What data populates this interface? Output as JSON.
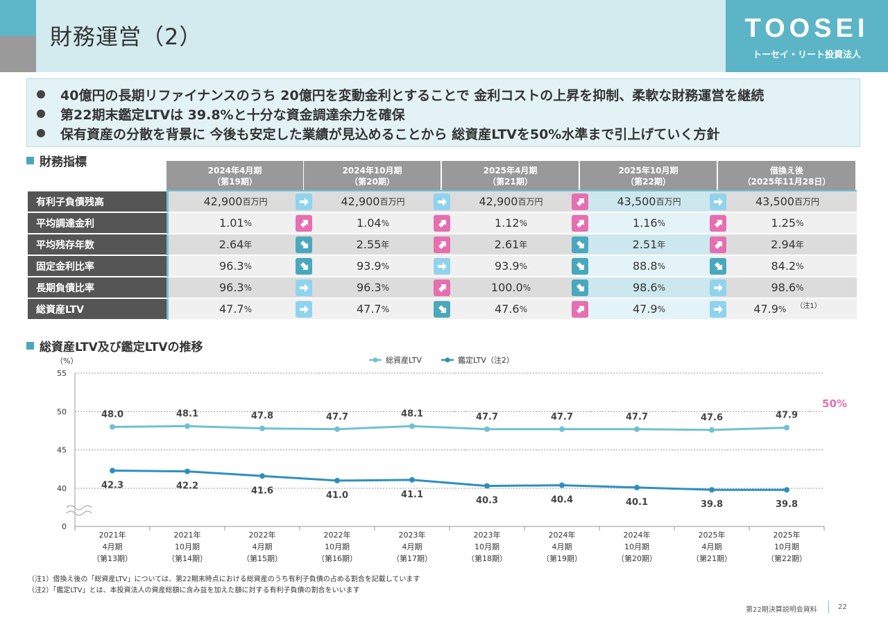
{
  "header": {
    "title": "財務運営（2）",
    "logo_main": "TOOSEI",
    "logo_sub": "トーセイ・リート投資法人"
  },
  "bullets": [
    "40億円の長期リファイナンスのうち 20億円を変動金利とすることで 金利コストの上昇を抑制、柔軟な財務運営を継続",
    "第22期末鑑定LTVは 39.8%と十分な資金調達余力を確保",
    "保有資産の分散を背景に 今後も安定した業績が見込めることから 総資産LTVを50%水準まで引上げていく方針"
  ],
  "section_table": "財務指標",
  "section_chart": "総資産LTV及び鑑定LTVの推移",
  "table": {
    "columns": [
      {
        "line1": "2024年4月期",
        "line2": "（第19期）"
      },
      {
        "line1": "2024年10月期",
        "line2": "（第20期）"
      },
      {
        "line1": "2025年4月期",
        "line2": "（第21期）"
      },
      {
        "line1": "2025年10月期",
        "line2": "（第22期）"
      },
      {
        "line1": "借換え後",
        "line2": "（2025年11月28日）"
      }
    ],
    "rows": [
      {
        "label": "有利子負債残高",
        "values": [
          "42,900",
          "42,900",
          "42,900",
          "43,500",
          "43,500"
        ],
        "unit": "百万円",
        "arrows": [
          "right",
          "right",
          "up",
          "right"
        ]
      },
      {
        "label": "平均調達金利",
        "values": [
          "1.01",
          "1.04",
          "1.12",
          "1.16",
          "1.25"
        ],
        "unit": "%",
        "arrows": [
          "up",
          "up",
          "up",
          "up"
        ]
      },
      {
        "label": "平均残存年数",
        "values": [
          "2.64",
          "2.55",
          "2.61",
          "2.51",
          "2.94"
        ],
        "unit": "年",
        "arrows": [
          "down",
          "up",
          "down",
          "up"
        ]
      },
      {
        "label": "固定金利比率",
        "values": [
          "96.3",
          "93.9",
          "93.9",
          "88.8",
          "84.2"
        ],
        "unit": "%",
        "arrows": [
          "down",
          "right",
          "down",
          "down"
        ]
      },
      {
        "label": "長期負債比率",
        "values": [
          "96.3",
          "96.3",
          "100.0",
          "98.6",
          "98.6"
        ],
        "unit": "%",
        "arrows": [
          "right",
          "up",
          "down",
          "right"
        ]
      },
      {
        "label": "総資産LTV",
        "values": [
          "47.7",
          "47.7",
          "47.6",
          "47.9",
          "47.9"
        ],
        "unit": "%",
        "arrows": [
          "right",
          "down",
          "up",
          "right"
        ]
      }
    ],
    "note_marker": "（注1）"
  },
  "colors": {
    "teal": "#6ec1d2",
    "teal_dark": "#2e8fbd",
    "pink": "#e56fb0",
    "light_blue": "#8fd3ee",
    "down_teal": "#4aa8bd"
  },
  "chart_data": {
    "type": "line",
    "yunit": "（%）",
    "ylim": [
      0,
      55
    ],
    "yticks": [
      "0",
      "40",
      "45",
      "50",
      "55"
    ],
    "categories": [
      [
        "2021年",
        "4月期",
        "（第13期）"
      ],
      [
        "2021年",
        "10月期",
        "（第14期）"
      ],
      [
        "2022年",
        "4月期",
        "（第15期）"
      ],
      [
        "2022年",
        "10月期",
        "（第16期）"
      ],
      [
        "2023年",
        "4月期",
        "（第17期）"
      ],
      [
        "2023年",
        "10月期",
        "（第18期）"
      ],
      [
        "2024年",
        "4月期",
        "（第19期）"
      ],
      [
        "2024年",
        "10月期",
        "（第20期）"
      ],
      [
        "2025年",
        "4月期",
        "（第21期）"
      ],
      [
        "2025年",
        "10月期",
        "（第22期）"
      ]
    ],
    "series": [
      {
        "name": "総資産LTV",
        "values": [
          48.0,
          48.1,
          47.8,
          47.7,
          48.1,
          47.7,
          47.7,
          47.7,
          47.6,
          47.9
        ]
      },
      {
        "name": "鑑定LTV（注2）",
        "values": [
          42.3,
          42.2,
          41.6,
          41.0,
          41.1,
          40.3,
          40.4,
          40.1,
          39.8,
          39.8
        ]
      }
    ],
    "target_label": "50%"
  },
  "footnotes": [
    "（注1）借換え後の「総資産LTV」については、第22期末時点における総資産のうち有利子負債の占める割合を記載しています",
    "（注2）「鑑定LTV」とは、本投資法人の資産総額に含み益を加えた額に対する有利子負債の割合をいいます"
  ],
  "footer": {
    "doc": "第22期決算説明会資料",
    "page": "22"
  }
}
